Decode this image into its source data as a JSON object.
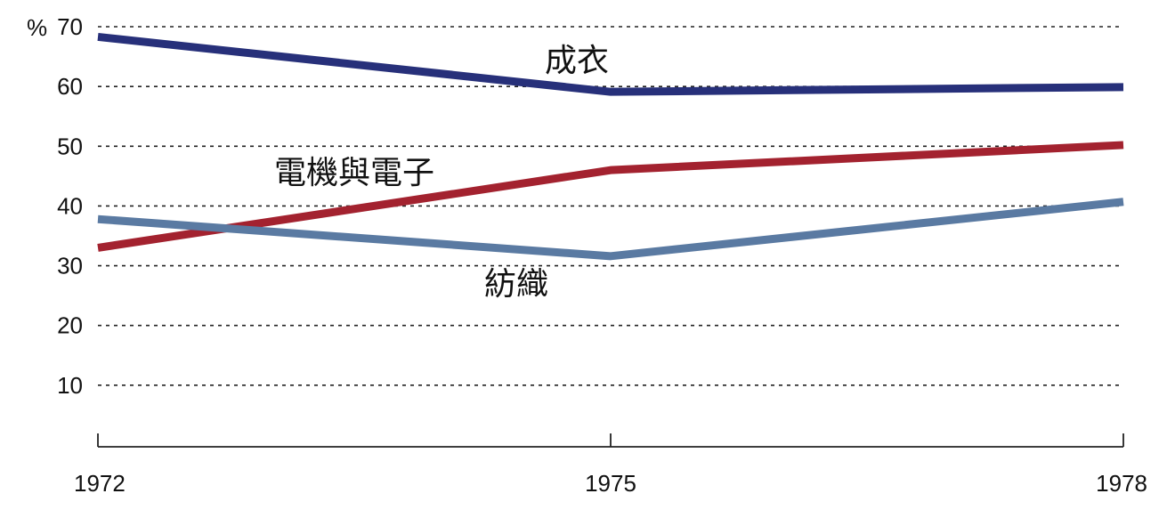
{
  "chart_data": {
    "type": "line",
    "title": "",
    "xlabel": "",
    "ylabel": "",
    "y_unit": "%",
    "x": [
      1972,
      1975,
      1978
    ],
    "x_tick_labels": [
      "1972",
      "1975",
      "1978"
    ],
    "y_ticks": [
      10,
      20,
      30,
      40,
      50,
      60,
      70
    ],
    "y_tick_labels": [
      "10",
      "20",
      "30",
      "40",
      "50",
      "60",
      "70"
    ],
    "ylim": [
      0,
      70
    ],
    "grid": true,
    "legend": "none (series labeled inline)",
    "series": [
      {
        "name": "成衣",
        "values": [
          68.3,
          59.1,
          59.9
        ],
        "color": "#27307a"
      },
      {
        "name": "電機與電子",
        "values": [
          33.0,
          46.0,
          50.2
        ],
        "color": "#a3222f"
      },
      {
        "name": "紡織",
        "values": [
          37.8,
          31.6,
          40.7
        ],
        "color": "#5a7aa2"
      }
    ]
  }
}
